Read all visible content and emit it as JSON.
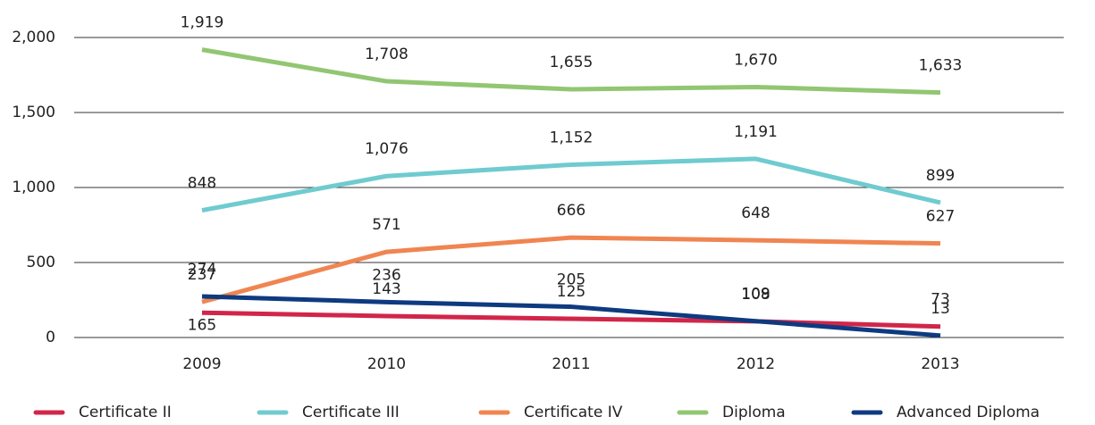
{
  "chart_data": {
    "type": "line",
    "categories": [
      "2009",
      "2010",
      "2011",
      "2012",
      "2013"
    ],
    "series": [
      {
        "name": "Certificate II",
        "color": "#d2254a",
        "values": [
          165,
          143,
          125,
          108,
          73
        ]
      },
      {
        "name": "Certificate III",
        "color": "#6fcbd0",
        "values": [
          848,
          1076,
          1152,
          1191,
          899
        ],
        "value_labels": [
          "848",
          "1,076",
          "1,152",
          "1,191",
          "899"
        ]
      },
      {
        "name": "Certificate IV",
        "color": "#f08552",
        "values": [
          237,
          571,
          666,
          648,
          627
        ]
      },
      {
        "name": "Diploma",
        "color": "#92c672",
        "values": [
          1919,
          1708,
          1655,
          1670,
          1633
        ],
        "value_labels": [
          "1,919",
          "1,708",
          "1,655",
          "1,670",
          "1,633"
        ]
      },
      {
        "name": "Advanced Diploma",
        "color": "#0e3a80",
        "values": [
          274,
          236,
          205,
          109,
          13
        ]
      }
    ],
    "ylim": [
      0,
      2000
    ],
    "yticks": [
      0,
      500,
      {
        "value": 1000,
        "label": "1,000"
      },
      {
        "value": 1500,
        "label": "1,500"
      },
      {
        "value": 2000,
        "label": "2,000"
      }
    ],
    "grid": true,
    "legend": "bottom"
  }
}
